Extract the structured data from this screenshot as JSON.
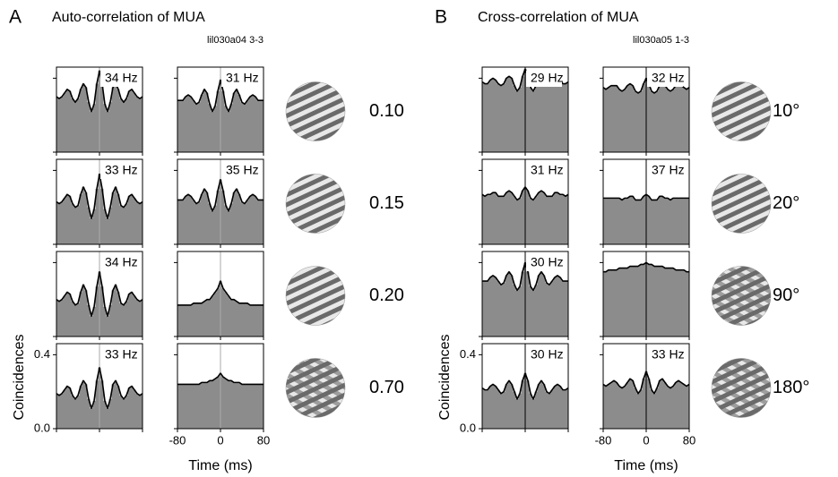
{
  "chart_data": [
    {
      "type": "line",
      "panel_label": "A",
      "title": "Auto-correlation of MUA",
      "recording": "lil030a04 3-3",
      "xlabel": "Time (ms)",
      "ylabel": "Coincidences",
      "xlim": [
        -80,
        80
      ],
      "xticks": [
        -80,
        0,
        80
      ],
      "ylim": [
        0,
        0.46
      ],
      "yticks": [
        {
          "value": 0,
          "label": "0.0"
        },
        0.4
      ],
      "bar_color": "#8c8c8c",
      "line_color": "#000000",
      "zero_line_color": "#aaaaaa",
      "x": [
        -80,
        -75,
        -70,
        -65,
        -60,
        -55,
        -50,
        -45,
        -40,
        -35,
        -30,
        -25,
        -20,
        -15,
        -10,
        -5,
        0,
        5,
        10,
        15,
        20,
        25,
        30,
        35,
        40,
        45,
        50,
        55,
        60,
        65,
        70,
        75,
        80
      ],
      "rows": [
        {
          "stimulus": "0.10",
          "plots": [
            {
              "peak": "34 Hz",
              "values": [
                0.3,
                0.29,
                0.3,
                0.32,
                0.34,
                0.33,
                0.29,
                0.27,
                0.29,
                0.34,
                0.37,
                0.35,
                0.27,
                0.22,
                0.26,
                0.37,
                0.44,
                0.37,
                0.26,
                0.22,
                0.27,
                0.35,
                0.37,
                0.34,
                0.29,
                0.27,
                0.29,
                0.33,
                0.34,
                0.32,
                0.3,
                0.29,
                0.3
              ]
            },
            {
              "peak": "31 Hz",
              "values": [
                0.28,
                0.28,
                0.28,
                0.3,
                0.31,
                0.3,
                0.28,
                0.26,
                0.27,
                0.31,
                0.34,
                0.32,
                0.26,
                0.22,
                0.25,
                0.33,
                0.39,
                0.33,
                0.25,
                0.22,
                0.26,
                0.32,
                0.34,
                0.31,
                0.27,
                0.26,
                0.28,
                0.3,
                0.31,
                0.3,
                0.28,
                0.28,
                0.28
              ]
            }
          ]
        },
        {
          "stimulus": "0.15",
          "plots": [
            {
              "peak": "33 Hz",
              "values": [
                0.23,
                0.22,
                0.23,
                0.25,
                0.27,
                0.26,
                0.22,
                0.2,
                0.21,
                0.27,
                0.31,
                0.28,
                0.2,
                0.14,
                0.19,
                0.3,
                0.38,
                0.3,
                0.19,
                0.14,
                0.2,
                0.28,
                0.31,
                0.27,
                0.21,
                0.2,
                0.22,
                0.26,
                0.27,
                0.25,
                0.23,
                0.22,
                0.23
              ]
            },
            {
              "peak": "35 Hz",
              "values": [
                0.24,
                0.24,
                0.24,
                0.26,
                0.27,
                0.26,
                0.24,
                0.22,
                0.23,
                0.27,
                0.3,
                0.28,
                0.22,
                0.18,
                0.21,
                0.29,
                0.35,
                0.29,
                0.21,
                0.18,
                0.22,
                0.28,
                0.3,
                0.27,
                0.23,
                0.22,
                0.24,
                0.26,
                0.27,
                0.26,
                0.24,
                0.24,
                0.24
              ]
            }
          ]
        },
        {
          "stimulus": "0.20",
          "plots": [
            {
              "peak": "34 Hz",
              "values": [
                0.2,
                0.19,
                0.2,
                0.22,
                0.24,
                0.23,
                0.19,
                0.17,
                0.18,
                0.24,
                0.28,
                0.25,
                0.17,
                0.11,
                0.16,
                0.27,
                0.35,
                0.27,
                0.16,
                0.11,
                0.17,
                0.25,
                0.28,
                0.24,
                0.18,
                0.17,
                0.19,
                0.23,
                0.24,
                0.22,
                0.2,
                0.19,
                0.2
              ]
            },
            {
              "values": [
                0.17,
                0.17,
                0.17,
                0.17,
                0.17,
                0.17,
                0.18,
                0.18,
                0.18,
                0.18,
                0.19,
                0.2,
                0.2,
                0.22,
                0.24,
                0.26,
                0.3,
                0.26,
                0.24,
                0.22,
                0.2,
                0.2,
                0.19,
                0.18,
                0.18,
                0.18,
                0.18,
                0.17,
                0.17,
                0.17,
                0.17,
                0.17,
                0.17
              ]
            }
          ]
        },
        {
          "stimulus": "0.70",
          "plots": [
            {
              "peak": "33 Hz",
              "values": [
                0.19,
                0.18,
                0.19,
                0.21,
                0.23,
                0.22,
                0.18,
                0.16,
                0.18,
                0.23,
                0.26,
                0.24,
                0.16,
                0.11,
                0.15,
                0.26,
                0.33,
                0.26,
                0.15,
                0.11,
                0.16,
                0.24,
                0.26,
                0.23,
                0.18,
                0.16,
                0.18,
                0.22,
                0.23,
                0.21,
                0.19,
                0.18,
                0.19
              ]
            },
            {
              "values": [
                0.24,
                0.24,
                0.24,
                0.24,
                0.24,
                0.24,
                0.24,
                0.24,
                0.24,
                0.25,
                0.25,
                0.25,
                0.26,
                0.26,
                0.27,
                0.28,
                0.3,
                0.28,
                0.27,
                0.26,
                0.26,
                0.25,
                0.25,
                0.25,
                0.24,
                0.24,
                0.24,
                0.24,
                0.24,
                0.24,
                0.24,
                0.24,
                0.24
              ]
            }
          ]
        }
      ]
    },
    {
      "type": "line",
      "panel_label": "B",
      "title": "Cross-correlation of MUA",
      "recording": "lil030a05 1-3",
      "xlabel": "Time (ms)",
      "ylabel": "Coincidences",
      "xlim": [
        -80,
        80
      ],
      "xticks": [
        -80,
        0,
        80
      ],
      "ylim": [
        0,
        0.46
      ],
      "yticks": [
        {
          "value": 0,
          "label": "0.0"
        },
        0.4
      ],
      "bar_color": "#8c8c8c",
      "line_color": "#000000",
      "zero_line_color": "#000000",
      "x": [
        -80,
        -75,
        -70,
        -65,
        -60,
        -55,
        -50,
        -45,
        -40,
        -35,
        -30,
        -25,
        -20,
        -15,
        -10,
        -5,
        0,
        5,
        10,
        15,
        20,
        25,
        30,
        35,
        40,
        45,
        50,
        55,
        60,
        65,
        70,
        75,
        80
      ],
      "rows": [
        {
          "stimulus": "10°",
          "plots": [
            {
              "peak": "29 Hz",
              "values": [
                0.38,
                0.37,
                0.37,
                0.39,
                0.4,
                0.39,
                0.37,
                0.36,
                0.37,
                0.4,
                0.41,
                0.4,
                0.36,
                0.33,
                0.35,
                0.41,
                0.45,
                0.41,
                0.35,
                0.33,
                0.36,
                0.4,
                0.41,
                0.4,
                0.37,
                0.36,
                0.37,
                0.39,
                0.4,
                0.39,
                0.37,
                0.37,
                0.38
              ]
            },
            {
              "peak": "32 Hz",
              "values": [
                0.35,
                0.34,
                0.35,
                0.36,
                0.36,
                0.36,
                0.34,
                0.33,
                0.34,
                0.36,
                0.37,
                0.36,
                0.33,
                0.32,
                0.33,
                0.37,
                0.4,
                0.37,
                0.33,
                0.32,
                0.33,
                0.36,
                0.37,
                0.36,
                0.34,
                0.33,
                0.34,
                0.36,
                0.36,
                0.36,
                0.35,
                0.34,
                0.35
              ]
            }
          ]
        },
        {
          "stimulus": "20°",
          "plots": [
            {
              "peak": "31 Hz",
              "values": [
                0.27,
                0.26,
                0.27,
                0.27,
                0.28,
                0.28,
                0.26,
                0.26,
                0.26,
                0.28,
                0.29,
                0.28,
                0.26,
                0.24,
                0.25,
                0.29,
                0.31,
                0.29,
                0.25,
                0.24,
                0.26,
                0.28,
                0.29,
                0.28,
                0.26,
                0.26,
                0.26,
                0.28,
                0.28,
                0.27,
                0.27,
                0.26,
                0.27
              ]
            },
            {
              "peak": "37 Hz",
              "values": [
                0.25,
                0.25,
                0.25,
                0.25,
                0.25,
                0.25,
                0.25,
                0.24,
                0.25,
                0.25,
                0.26,
                0.26,
                0.24,
                0.24,
                0.24,
                0.26,
                0.27,
                0.26,
                0.24,
                0.24,
                0.24,
                0.26,
                0.26,
                0.25,
                0.25,
                0.24,
                0.25,
                0.25,
                0.25,
                0.25,
                0.25,
                0.25,
                0.25
              ]
            }
          ]
        },
        {
          "stimulus": "90°",
          "plots": [
            {
              "peak": "30 Hz",
              "values": [
                0.3,
                0.3,
                0.3,
                0.32,
                0.33,
                0.32,
                0.3,
                0.28,
                0.29,
                0.33,
                0.35,
                0.33,
                0.28,
                0.25,
                0.27,
                0.35,
                0.4,
                0.35,
                0.27,
                0.25,
                0.28,
                0.33,
                0.35,
                0.33,
                0.29,
                0.28,
                0.3,
                0.32,
                0.33,
                0.32,
                0.3,
                0.3,
                0.3
              ]
            },
            {
              "values": [
                0.35,
                0.35,
                0.36,
                0.36,
                0.36,
                0.36,
                0.37,
                0.37,
                0.37,
                0.37,
                0.38,
                0.38,
                0.38,
                0.38,
                0.39,
                0.39,
                0.4,
                0.39,
                0.39,
                0.38,
                0.38,
                0.38,
                0.38,
                0.37,
                0.37,
                0.37,
                0.37,
                0.36,
                0.36,
                0.36,
                0.36,
                0.35,
                0.35
              ]
            }
          ]
        },
        {
          "stimulus": "180°",
          "plots": [
            {
              "peak": "30 Hz",
              "values": [
                0.22,
                0.21,
                0.21,
                0.23,
                0.24,
                0.23,
                0.21,
                0.19,
                0.2,
                0.24,
                0.26,
                0.24,
                0.2,
                0.16,
                0.19,
                0.26,
                0.3,
                0.26,
                0.19,
                0.16,
                0.2,
                0.24,
                0.26,
                0.24,
                0.2,
                0.19,
                0.21,
                0.23,
                0.24,
                0.23,
                0.21,
                0.21,
                0.22
              ]
            },
            {
              "peak": "33 Hz",
              "values": [
                0.24,
                0.23,
                0.24,
                0.25,
                0.26,
                0.25,
                0.23,
                0.22,
                0.23,
                0.25,
                0.27,
                0.26,
                0.22,
                0.19,
                0.21,
                0.27,
                0.31,
                0.27,
                0.21,
                0.19,
                0.22,
                0.26,
                0.27,
                0.25,
                0.23,
                0.22,
                0.23,
                0.25,
                0.26,
                0.25,
                0.24,
                0.23,
                0.24
              ]
            }
          ]
        }
      ]
    }
  ]
}
